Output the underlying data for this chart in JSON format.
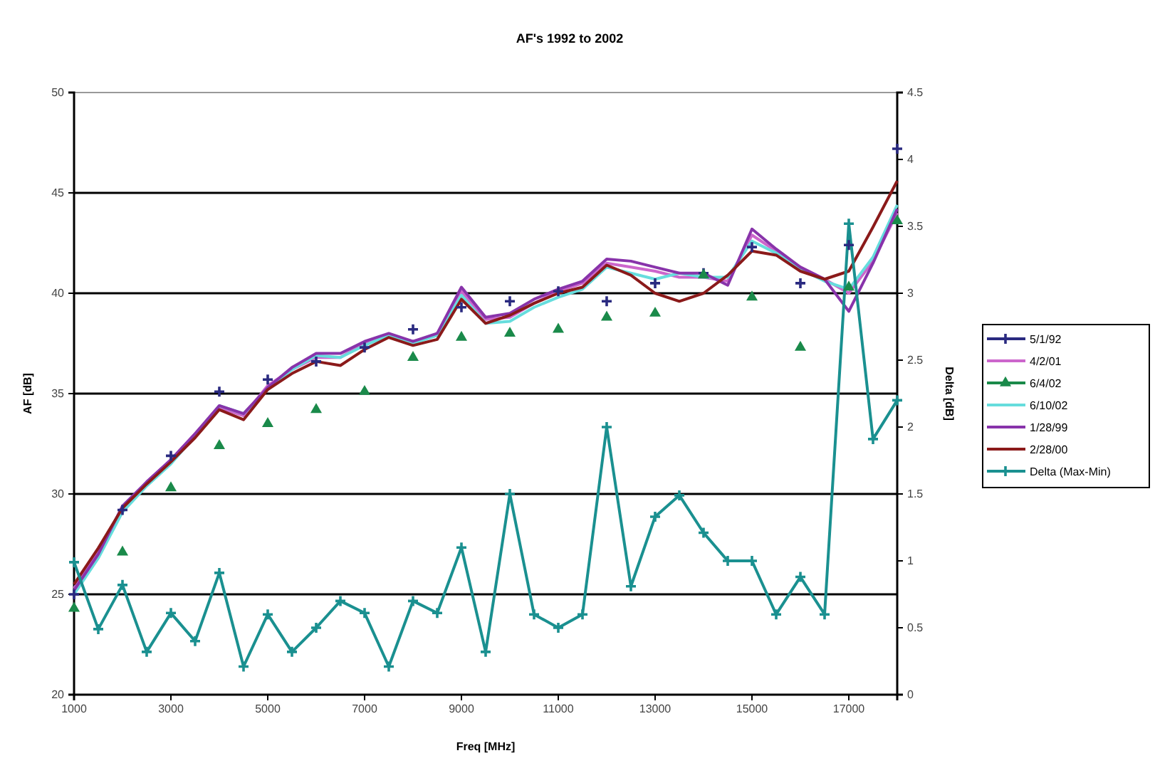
{
  "chart_data": {
    "type": "line",
    "title": "AF's 1992 to 2002",
    "xlabel": "Freq [MHz]",
    "ylabel": "AF [dB]",
    "y2label": "Delta [dB]",
    "xlim": [
      1000,
      18000
    ],
    "xticks": [
      1000,
      3000,
      5000,
      7000,
      9000,
      11000,
      13000,
      15000,
      17000
    ],
    "ylim": [
      20,
      50
    ],
    "yticks": [
      20,
      25,
      30,
      35,
      40,
      45,
      50
    ],
    "y2lim": [
      0,
      4.5
    ],
    "y2ticks": [
      0,
      0.5,
      1,
      1.5,
      2,
      2.5,
      3,
      3.5,
      4,
      4.5
    ],
    "x": [
      1000,
      1500,
      2000,
      2500,
      3000,
      3500,
      4000,
      4500,
      5000,
      5500,
      6000,
      6500,
      7000,
      7500,
      8000,
      8500,
      9000,
      9500,
      10000,
      10500,
      11000,
      11500,
      12000,
      12500,
      13000,
      13500,
      14000,
      14500,
      15000,
      15500,
      16000,
      16500,
      17000,
      17500,
      18000
    ],
    "grid": "y",
    "legend": "right",
    "series": [
      {
        "name": "5/1/92",
        "type": "scatter",
        "marker": "cross",
        "color": "#2a2a80",
        "x": [
          1000,
          2000,
          3000,
          4000,
          5000,
          6000,
          7000,
          8000,
          9000,
          10000,
          11000,
          12000,
          13000,
          14000,
          15000,
          16000,
          17000,
          18000
        ],
        "values": [
          25.0,
          29.2,
          31.9,
          35.1,
          35.7,
          36.6,
          37.3,
          38.2,
          39.3,
          39.6,
          40.1,
          39.6,
          40.5,
          41.0,
          42.3,
          40.5,
          42.4,
          47.2
        ]
      },
      {
        "name": "4/2/01",
        "color": "#cc66cc",
        "values": [
          25.3,
          27.2,
          29.3,
          30.6,
          31.7,
          33.0,
          34.3,
          33.9,
          35.4,
          36.2,
          36.8,
          36.8,
          37.5,
          37.9,
          37.6,
          37.9,
          40.1,
          38.7,
          38.8,
          39.5,
          40.1,
          40.5,
          41.5,
          41.3,
          41.1,
          40.8,
          40.8,
          40.6,
          42.9,
          42.1,
          41.3,
          40.7,
          40.0,
          41.6,
          44.0
        ]
      },
      {
        "name": "6/4/02",
        "type": "scatter",
        "marker": "triangle",
        "color": "#1a8a4a",
        "x": [
          1000,
          2000,
          3000,
          4000,
          5000,
          6000,
          7000,
          8000,
          9000,
          10000,
          11000,
          12000,
          13000,
          14000,
          15000,
          16000,
          17000,
          18000
        ],
        "values": [
          24.3,
          27.1,
          30.3,
          32.4,
          33.5,
          34.2,
          35.1,
          36.8,
          37.8,
          38.0,
          38.2,
          38.8,
          39.0,
          40.9,
          39.8,
          37.3,
          40.3,
          43.6
        ]
      },
      {
        "name": "6/10/02",
        "color": "#66dddd",
        "values": [
          25.0,
          26.8,
          29.1,
          30.4,
          31.5,
          32.9,
          34.4,
          34.0,
          35.2,
          36.2,
          36.9,
          36.8,
          37.4,
          37.9,
          37.5,
          37.9,
          39.9,
          38.5,
          38.6,
          39.3,
          39.8,
          40.2,
          41.3,
          41.0,
          40.7,
          41.0,
          40.8,
          40.8,
          42.6,
          42.0,
          41.2,
          40.6,
          40.2,
          41.8,
          44.4
        ]
      },
      {
        "name": "1/28/99",
        "color": "#8833aa",
        "values": [
          25.2,
          27.0,
          29.4,
          30.6,
          31.7,
          33.0,
          34.4,
          34.0,
          35.3,
          36.3,
          37.0,
          37.0,
          37.6,
          38.0,
          37.6,
          38.0,
          40.3,
          38.8,
          39.0,
          39.7,
          40.2,
          40.6,
          41.7,
          41.6,
          41.3,
          41.0,
          41.0,
          40.4,
          43.2,
          42.2,
          41.3,
          40.7,
          39.1,
          41.5,
          44.2
        ]
      },
      {
        "name": "2/28/00",
        "color": "#8b1a1a",
        "values": [
          25.5,
          27.3,
          29.3,
          30.5,
          31.6,
          32.8,
          34.2,
          33.7,
          35.2,
          36.0,
          36.6,
          36.4,
          37.2,
          37.8,
          37.4,
          37.7,
          39.7,
          38.5,
          38.9,
          39.5,
          40.0,
          40.3,
          41.4,
          40.9,
          40.0,
          39.6,
          40.0,
          40.9,
          42.1,
          41.9,
          41.1,
          40.7,
          41.1,
          43.3,
          45.6
        ]
      },
      {
        "name": "Delta (Max-Min)",
        "axis": "y2",
        "marker": "cross",
        "color": "#1a9090",
        "values": [
          0.99,
          0.49,
          0.82,
          0.32,
          0.61,
          0.4,
          0.91,
          0.21,
          0.6,
          0.32,
          0.5,
          0.7,
          0.61,
          0.21,
          0.7,
          0.61,
          1.1,
          0.32,
          1.5,
          0.6,
          0.5,
          0.6,
          2.0,
          0.81,
          1.33,
          1.49,
          1.21,
          1.0,
          1.0,
          0.6,
          0.88,
          0.6,
          3.52,
          1.91,
          2.2
        ]
      }
    ]
  }
}
